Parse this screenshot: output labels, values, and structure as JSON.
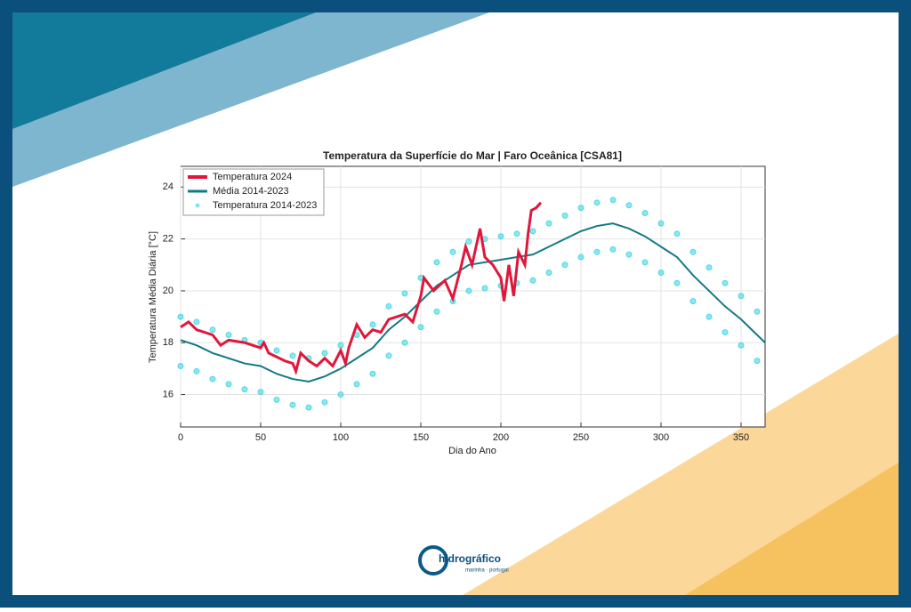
{
  "chart_data": {
    "type": "line",
    "title": "Temperatura da Superfície do Mar | Faro Oceânica [CSA81]",
    "x_label": "Dia do Ano",
    "y_label": "Temperatura Média Diária [°C]",
    "xlim": [
      0,
      365
    ],
    "ylim": [
      14.75,
      24.8
    ],
    "xticks": [
      0,
      50,
      100,
      150,
      200,
      250,
      300,
      350
    ],
    "yticks": [
      16,
      18,
      20,
      22,
      24
    ],
    "grid": true,
    "legend": "upper left",
    "series": [
      {
        "name": "Temperatura 2024",
        "type": "line",
        "color": "#e0173a",
        "x": [
          0,
          5,
          10,
          20,
          25,
          30,
          40,
          50,
          52,
          55,
          65,
          70,
          72,
          75,
          80,
          85,
          90,
          95,
          100,
          103,
          105,
          110,
          115,
          120,
          125,
          130,
          140,
          145,
          150,
          152,
          158,
          165,
          170,
          175,
          178,
          182,
          187,
          190,
          195,
          200,
          202,
          205,
          208,
          211,
          215,
          217,
          219,
          222,
          225
        ],
        "y": [
          18.6,
          18.8,
          18.5,
          18.3,
          17.9,
          18.1,
          18.0,
          17.8,
          18.0,
          17.6,
          17.3,
          17.2,
          16.9,
          17.6,
          17.3,
          17.1,
          17.4,
          17.1,
          17.7,
          17.2,
          17.8,
          18.7,
          18.2,
          18.5,
          18.4,
          18.9,
          19.1,
          18.8,
          19.8,
          20.5,
          20.0,
          20.4,
          19.7,
          20.9,
          21.7,
          21.0,
          22.4,
          21.3,
          21.0,
          20.5,
          19.6,
          21.0,
          19.8,
          21.5,
          21.0,
          22.2,
          23.1,
          23.2,
          23.4
        ]
      },
      {
        "name": "Média 2014-2023",
        "type": "line",
        "color": "#137a85",
        "x": [
          0,
          10,
          20,
          30,
          40,
          50,
          60,
          70,
          80,
          90,
          100,
          110,
          120,
          130,
          140,
          150,
          160,
          170,
          180,
          190,
          200,
          210,
          220,
          230,
          240,
          250,
          260,
          270,
          280,
          290,
          300,
          310,
          320,
          330,
          340,
          350,
          360,
          365
        ],
        "y": [
          18.1,
          17.9,
          17.6,
          17.4,
          17.2,
          17.1,
          16.8,
          16.6,
          16.5,
          16.7,
          17.0,
          17.4,
          17.8,
          18.5,
          19.0,
          19.6,
          20.2,
          20.6,
          21.0,
          21.1,
          21.2,
          21.3,
          21.4,
          21.7,
          22.0,
          22.3,
          22.5,
          22.6,
          22.4,
          22.1,
          21.7,
          21.3,
          20.6,
          20.0,
          19.4,
          18.9,
          18.3,
          18.0
        ]
      },
      {
        "name": "Temperatura 2014-2023",
        "type": "scatter",
        "color": "#2fd3e0",
        "x": [
          0,
          10,
          20,
          30,
          40,
          50,
          60,
          70,
          80,
          90,
          100,
          110,
          120,
          130,
          140,
          150,
          160,
          170,
          180,
          190,
          200,
          210,
          220,
          230,
          240,
          250,
          260,
          270,
          280,
          290,
          300,
          310,
          320,
          330,
          340,
          350,
          360,
          0,
          10,
          20,
          30,
          40,
          50,
          60,
          70,
          80,
          90,
          100,
          110,
          120,
          130,
          140,
          150,
          160,
          170,
          180,
          190,
          200,
          210,
          220,
          230,
          240,
          250,
          260,
          270,
          280,
          290,
          300,
          310,
          320,
          330,
          340,
          350,
          360
        ],
        "y": [
          19.0,
          18.8,
          18.5,
          18.3,
          18.1,
          18.0,
          17.7,
          17.5,
          17.4,
          17.6,
          17.9,
          18.3,
          18.7,
          19.4,
          19.9,
          20.5,
          21.1,
          21.5,
          21.9,
          22.0,
          22.1,
          22.2,
          22.3,
          22.6,
          22.9,
          23.2,
          23.4,
          23.5,
          23.3,
          23.0,
          22.6,
          22.2,
          21.5,
          20.9,
          20.3,
          19.8,
          19.2,
          17.1,
          16.9,
          16.6,
          16.4,
          16.2,
          16.1,
          15.8,
          15.6,
          15.5,
          15.7,
          16.0,
          16.4,
          16.8,
          17.5,
          18.0,
          18.6,
          19.2,
          19.6,
          20.0,
          20.1,
          20.2,
          20.3,
          20.4,
          20.7,
          21.0,
          21.3,
          21.5,
          21.6,
          21.4,
          21.1,
          20.7,
          20.3,
          19.6,
          19.0,
          18.4,
          17.9,
          17.3
        ]
      }
    ]
  },
  "logo": {
    "name": "hidrográfico",
    "tagline": "marinha · portugal"
  }
}
